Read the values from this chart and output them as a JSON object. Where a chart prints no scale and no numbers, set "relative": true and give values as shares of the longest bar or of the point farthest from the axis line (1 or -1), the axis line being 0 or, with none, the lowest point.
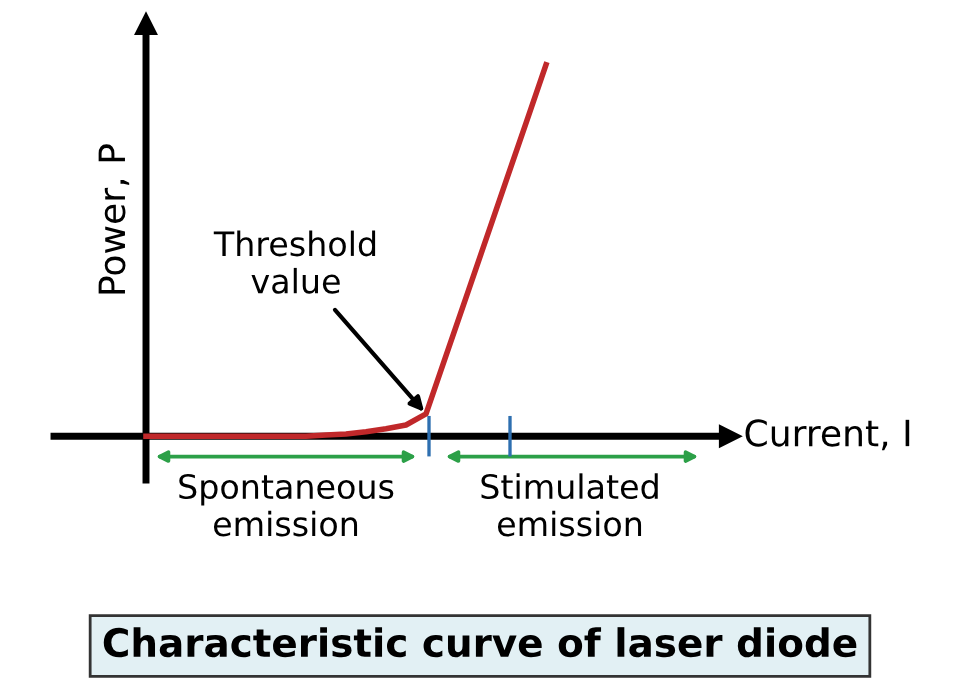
{
  "chart_data": {
    "type": "line",
    "relative": true,
    "title": "Characteristic curve of laser diode",
    "ylabel": "Power, P",
    "categories": [
      null,
      null,
      null,
      null,
      null,
      null,
      null,
      null,
      null,
      null,
      null,
      null,
      null,
      null,
      null,
      null,
      null,
      null,
      null,
      null,
      null
    ],
    "series": [
      {
        "color": "#c0282a",
        "values": [
          0,
          0,
          0,
          0,
          0,
          0,
          0,
          0,
          0,
          0.003,
          0.006,
          0.012,
          0.02,
          0.03,
          0.06,
          0.217,
          0.373,
          0.53,
          0.687,
          0.843,
          1.0
        ]
      }
    ],
    "annotations": [
      "Threshold\nvalue",
      "Spontaneous\nemission",
      "Stimulated\nemission",
      "Current, I"
    ],
    "legend": false,
    "marker": "none",
    "line_style": "solid"
  }
}
